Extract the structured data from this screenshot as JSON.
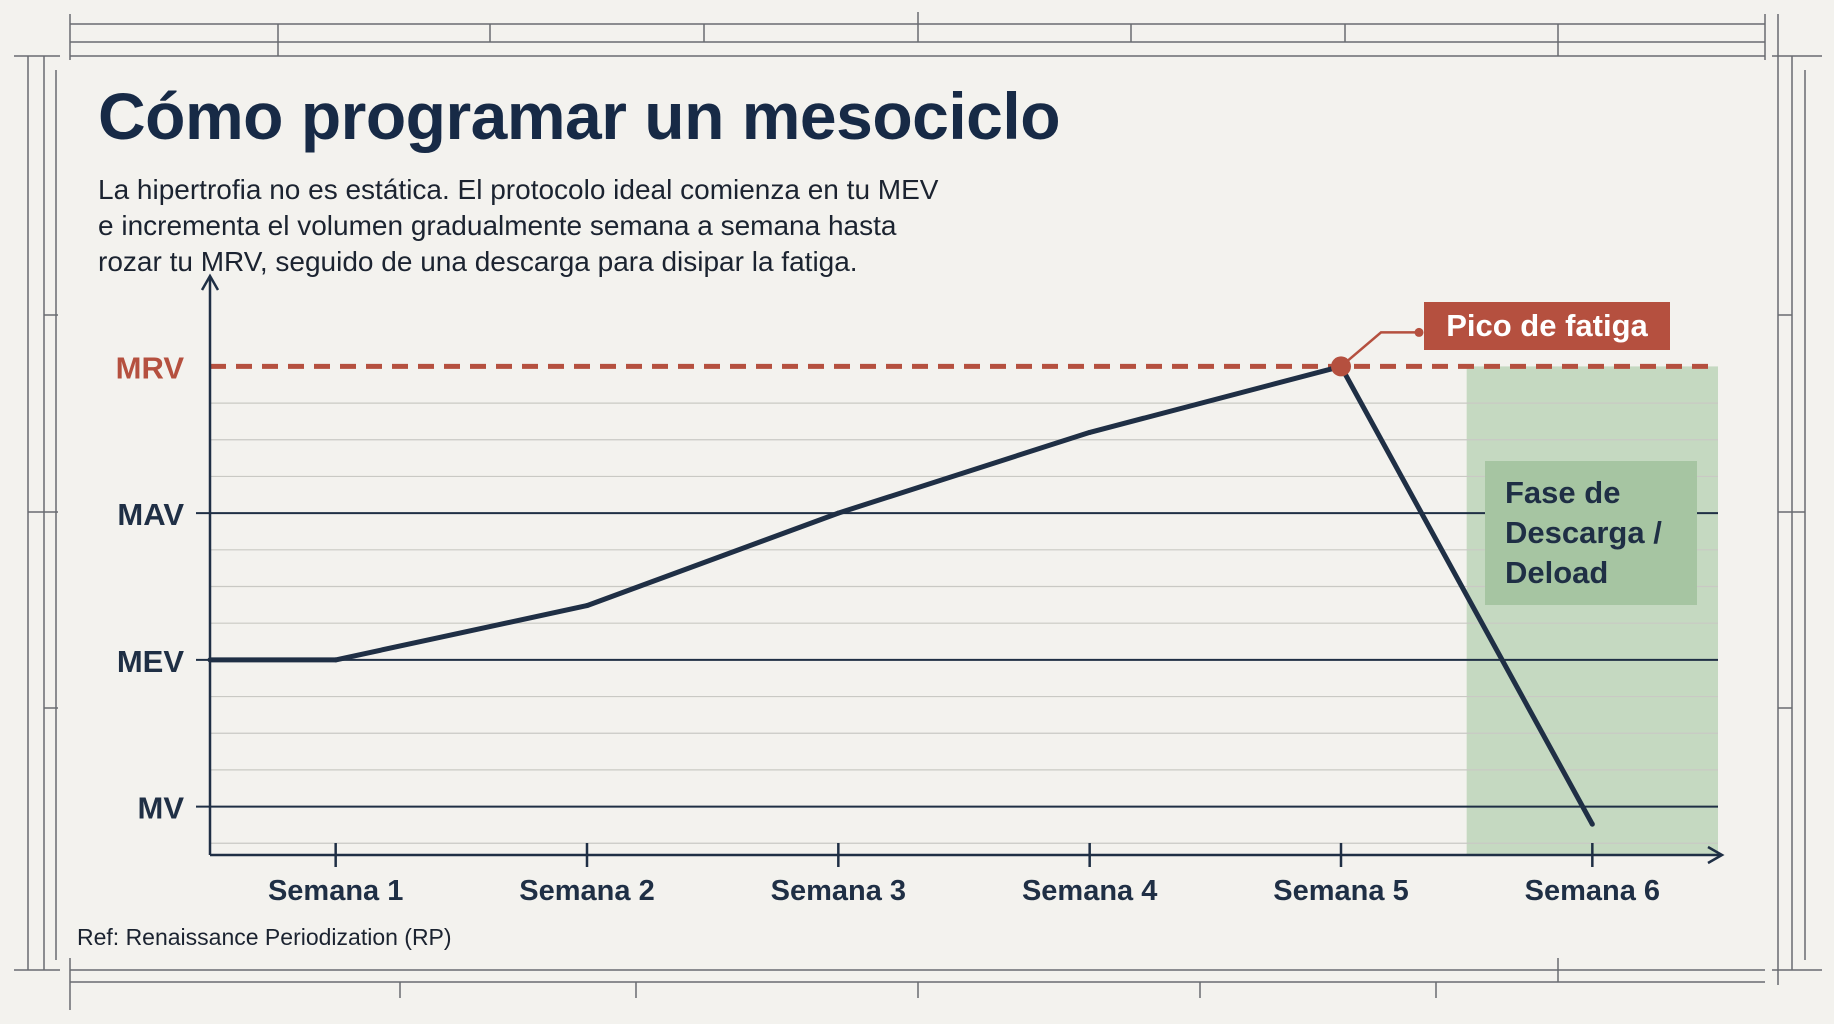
{
  "header": {
    "title": "Cómo programar un mesociclo",
    "subtitle_lines": [
      "La hipertrofia no es estática. El protocolo ideal comienza en tu MEV",
      "e incrementa el volumen gradualmente semana a semana hasta",
      "rozar tu MRV, seguido de una descarga para disipar la fatiga."
    ]
  },
  "footer": {
    "reference": "Ref: Renaissance Periodization (RP)"
  },
  "colors": {
    "line": "#1f2f45",
    "mrv_accent": "#b5503f",
    "deload_zone": "#bcd5b8",
    "deload_box": "#a6c5a2",
    "background": "#f3f2ee"
  },
  "chart_data": {
    "type": "line",
    "x_categories": [
      "Semana 1",
      "Semana 2",
      "Semana 3",
      "Semana 4",
      "Semana 5",
      "Semana 6"
    ],
    "y_levels": [
      {
        "label": "MV",
        "value": 0
      },
      {
        "label": "MEV",
        "value": 1
      },
      {
        "label": "MAV",
        "value": 2
      },
      {
        "label": "MRV",
        "value": 3
      }
    ],
    "ylim": [
      -0.33,
      3.33
    ],
    "series": [
      {
        "points": [
          {
            "x": 0.5,
            "y": 1.0
          },
          {
            "x": 1.0,
            "y": 1.0
          },
          {
            "x": 2.0,
            "y": 1.37
          },
          {
            "x": 3.0,
            "y": 2.0
          },
          {
            "x": 4.0,
            "y": 2.55
          },
          {
            "x": 5.0,
            "y": 3.0
          },
          {
            "x": 6.0,
            "y": -0.12
          }
        ]
      }
    ],
    "reference_line": {
      "level": "MRV",
      "style": "dashed"
    },
    "annotations": [
      {
        "text": "Pico de fatiga",
        "at": {
          "x": 5.0,
          "y": 3.0
        }
      }
    ],
    "shaded_regions": [
      {
        "label": "Fase de\nDescarga /\nDeload",
        "x_start": 5.5,
        "x_end": 6.5,
        "y_top": 3.0
      }
    ],
    "grid": true,
    "legend": "none"
  }
}
